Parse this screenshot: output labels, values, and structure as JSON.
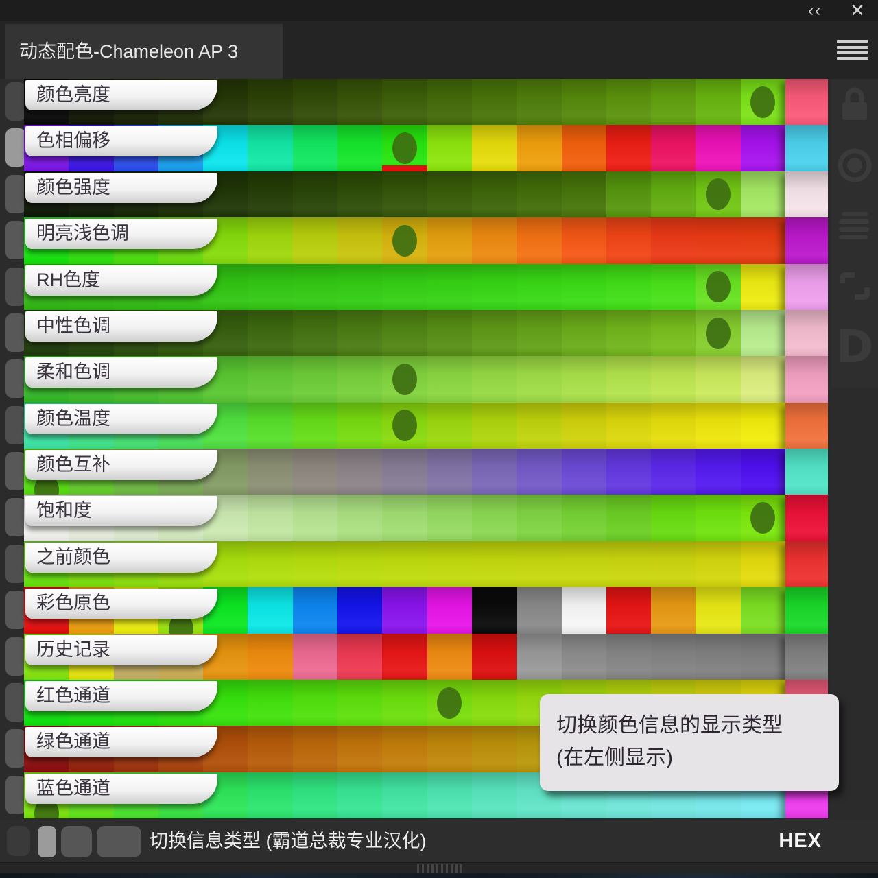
{
  "window": {
    "collapse_icon": "‹‹",
    "close_icon": "✕"
  },
  "header": {
    "title": "动态配色-Chameleon AP 3",
    "menu_icon": "hamburger"
  },
  "toolbar_icons": [
    "lock",
    "record",
    "list-lines",
    "swap-refresh",
    "letter-d"
  ],
  "tooltip": {
    "line1": "切换颜色信息的显示类型",
    "line2": "(在左侧显示)"
  },
  "footer": {
    "label": "切换信息类型 (霸道总裁专业汉化)",
    "mode": "HEX"
  },
  "accent": {
    "dot_color": "#3e6f12",
    "indicator_red": "#e01010",
    "label_text": "#3b3340"
  },
  "rows": [
    {
      "label": "颜色亮度",
      "stub": "#474747",
      "dot": {
        "sw": 17,
        "v": "mid"
      },
      "red_under": null,
      "swatches": [
        "#080808",
        "#111803",
        "#182204",
        "#1e2d05",
        "#253706",
        "#2b4106",
        "#314b07",
        "#375508",
        "#3d6008",
        "#436a09",
        "#49740a",
        "#4f7e0b",
        "#55880b",
        "#5b930c",
        "#61a00d",
        "#68b510",
        "#7ce318"
      ],
      "final": "#fb5a78"
    },
    {
      "label": "色相偏移",
      "stub": "#9a9a9a",
      "dot": {
        "sw": 9,
        "v": "mid"
      },
      "red_under": 9,
      "swatches": [
        "#7d13ea",
        "#3b13ea",
        "#2a4ef2",
        "#17a0f2",
        "#0ce6ee",
        "#12e8a6",
        "#11e860",
        "#15e72b",
        "#27e60e",
        "#8ee60d",
        "#e6dd0b",
        "#f0a00c",
        "#f2600c",
        "#ee1e14",
        "#ee1363",
        "#ee12b8",
        "#a812f0"
      ],
      "final": "#4cd2ee"
    },
    {
      "label": "颜色强度",
      "stub": "#585858",
      "dot": {
        "sw": 16,
        "v": "mid"
      },
      "red_under": null,
      "swatches": [
        "#0b1503",
        "#101d04",
        "#152504",
        "#1a2d05",
        "#1f3506",
        "#243d06",
        "#294507",
        "#2e4d07",
        "#335508",
        "#385d08",
        "#3d6509",
        "#426d09",
        "#47750a",
        "#55960d",
        "#63ae10",
        "#72c714",
        "#a5e964"
      ],
      "final": "#f6e4ea"
    },
    {
      "label": "明亮浅色调",
      "stub": "#585858",
      "dot": {
        "sw": 9,
        "v": "mid"
      },
      "red_under": null,
      "swatches": [
        "#13e60b",
        "#2ee40b",
        "#4ce20b",
        "#6adf0b",
        "#86dc0b",
        "#a0d80c",
        "#b8d00c",
        "#c9c40d",
        "#d8b40d",
        "#e5a00e",
        "#ee8a10",
        "#f47112",
        "#f65815",
        "#f24517",
        "#ec3916",
        "#ea3a13",
        "#e93b11"
      ],
      "final": "#bc18cc"
    },
    {
      "label": "RH色度",
      "stub": "#4f4f4f",
      "dot": {
        "sw": 16,
        "v": "mid"
      },
      "red_under": null,
      "swatches": [
        "#2fb911",
        "#2fbc11",
        "#30bf12",
        "#30c212",
        "#31c512",
        "#32c813",
        "#32ca13",
        "#33cd13",
        "#34d014",
        "#35d314",
        "#36d614",
        "#38d915",
        "#3bdc15",
        "#40df16",
        "#48e218",
        "#68e322",
        "#eeec11"
      ],
      "final": "#f0a0ee"
    },
    {
      "label": "中性色调",
      "stub": "#585858",
      "dot": {
        "sw": 16,
        "v": "mid"
      },
      "red_under": null,
      "swatches": [
        "#1d3a08",
        "#23430a",
        "#2a4d0b",
        "#30560c",
        "#37600e",
        "#3d690f",
        "#447311",
        "#4a7c12",
        "#518614",
        "#578f15",
        "#5e9917",
        "#64a218",
        "#6bac1a",
        "#71b51b",
        "#78bf1d",
        "#87cf2e",
        "#b9ed8e"
      ],
      "final": "#f4bccf"
    },
    {
      "label": "柔和色调",
      "stub": "#585858",
      "dot": {
        "sw": 9,
        "v": "mid"
      },
      "red_under": null,
      "swatches": [
        "#31ba25",
        "#3bbd28",
        "#45c02b",
        "#4fc32e",
        "#59c731",
        "#63ca34",
        "#6dcd37",
        "#77d03a",
        "#81d43d",
        "#8bd740",
        "#95da43",
        "#9fdd46",
        "#a9e149",
        "#b3e44c",
        "#bde74f",
        "#cbea5c",
        "#dcee7e"
      ],
      "final": "#f4a0c2"
    },
    {
      "label": "颜色温度",
      "stub": "#4f4f4f",
      "dot": {
        "sw": 9,
        "v": "mid"
      },
      "red_under": null,
      "swatches": [
        "#3ce8a8",
        "#40e88e",
        "#45e674",
        "#4ae45a",
        "#50e240",
        "#58e02a",
        "#66de18",
        "#78dc10",
        "#8ada0e",
        "#9cd80d",
        "#aed60c",
        "#c0d40c",
        "#d0d20b",
        "#dcd80b",
        "#e6de0b",
        "#eee60b",
        "#f2ee0b"
      ],
      "final": "#f2713d"
    },
    {
      "label": "颜色互补",
      "stub": "#585858",
      "dot": {
        "sw": 1,
        "v": "bottom"
      },
      "red_under": null,
      "swatches": [
        "#55e20e",
        "#63d02a",
        "#70be42",
        "#7cac56",
        "#859c66",
        "#8c9074",
        "#8e887f",
        "#8c8389",
        "#877d96",
        "#8274a6",
        "#7b68b8",
        "#745ac8",
        "#6c4ad6",
        "#6438e2",
        "#5c28ea",
        "#551af0",
        "#500ff2"
      ],
      "final": "#52e5c8"
    },
    {
      "label": "饱和度",
      "stub": "#585858",
      "dot": {
        "sw": 17,
        "v": "mid"
      },
      "red_under": null,
      "swatches": [
        "#f5f5f2",
        "#ecf2e2",
        "#e2efd2",
        "#d8edc2",
        "#cdeab2",
        "#c2e7a2",
        "#b7e492",
        "#ace182",
        "#a1de72",
        "#96db62",
        "#8bd852",
        "#80d542",
        "#76d233",
        "#6ccf24",
        "#68dc10",
        "#70e40e",
        "#7ce80c"
      ],
      "final": "#ee1138"
    },
    {
      "label": "之前颜色",
      "stub": "#4f4f4f",
      "dot": null,
      "red_under": null,
      "swatches": [
        "#66e40b",
        "#7ce30b",
        "#8ee20b",
        "#9ce10c",
        "#a8e00c",
        "#b0df0c",
        "#b6de0c",
        "#bbdd0c",
        "#bfdc0c",
        "#c2db0c",
        "#c4da0c",
        "#c6d90d",
        "#c8d80d",
        "#cad70d",
        "#ccd60d",
        "#d4d70c",
        "#e4dc0c"
      ],
      "final": "#ee3230"
    },
    {
      "label": "彩色原色",
      "stub": "#585858",
      "dot": {
        "sw": 4,
        "v": "bottom"
      },
      "red_under": null,
      "swatches": [
        "#e80c0c",
        "#f0a00c",
        "#f0f00c",
        "#9ce80c",
        "#0ce822",
        "#0ce8e8",
        "#0c86f0",
        "#1414ee",
        "#8a14ee",
        "#e814e8",
        "#0a0a0a",
        "#8a8a8a",
        "#f7f7f7",
        "#e81414",
        "#e89a14",
        "#e8e814",
        "#7ce022"
      ],
      "final": "#19d929"
    },
    {
      "label": "历史记录",
      "stub": "#585858",
      "dot": null,
      "red_under": null,
      "swatches": [
        "#86e80c",
        "#e8e80c",
        "#c8b266",
        "#d0b055",
        "#e8940e",
        "#ee8a0c",
        "#ee6a92",
        "#ee3952",
        "#e81616",
        "#ee8a11",
        "#dd0f0f",
        "#999999",
        "#8c8c8c",
        "#858585",
        "#828282",
        "#808080",
        "#7e7e7e"
      ],
      "final": "#808080"
    },
    {
      "label": "红色通道",
      "stub": "#4f4f4f",
      "dot": {
        "sw": 10,
        "v": "mid"
      },
      "red_under": null,
      "swatches": [
        "#0ce80c",
        "#16e70c",
        "#20e60c",
        "#2ae50c",
        "#36e40c",
        "#42e30c",
        "#50e20c",
        "#5ee10c",
        "#6ce00c",
        "#7adf0c",
        "#88dd0c",
        "#96db0c",
        "#a6d90c",
        "#b6d70c",
        "#c6d40c",
        "#d6d20c",
        "#e2da0c"
      ],
      "final": "#e85a78"
    },
    {
      "label": "绿色通道",
      "stub": "#585858",
      "dot": null,
      "red_under": null,
      "swatches": [
        "#8c0b0b",
        "#96200a",
        "#a0320a",
        "#aa420a",
        "#b2500a",
        "#b85c0a",
        "#be680a",
        "#c2740a",
        "#c47e0a",
        "#c2880a",
        "#be900a",
        "#ba980a",
        "#b49e0a",
        "#aea40a",
        "#a8a80a",
        "#aaae0a",
        "#b2b20a"
      ],
      "final": "#b2b20a"
    },
    {
      "label": "蓝色通道",
      "stub": "#585858",
      "dot": {
        "sw": 1,
        "v": "bottom"
      },
      "red_under": null,
      "swatches": [
        "#7de80c",
        "#62e81a",
        "#4ae72c",
        "#38e642",
        "#2ee658",
        "#2ce66e",
        "#30e682",
        "#38e694",
        "#42e6a4",
        "#4ee6b2",
        "#58e6be",
        "#62e6c8",
        "#6ae6d2",
        "#70e6da",
        "#74e6e2",
        "#76e7ea",
        "#78eaf2"
      ],
      "final": "#ee3aee"
    }
  ]
}
